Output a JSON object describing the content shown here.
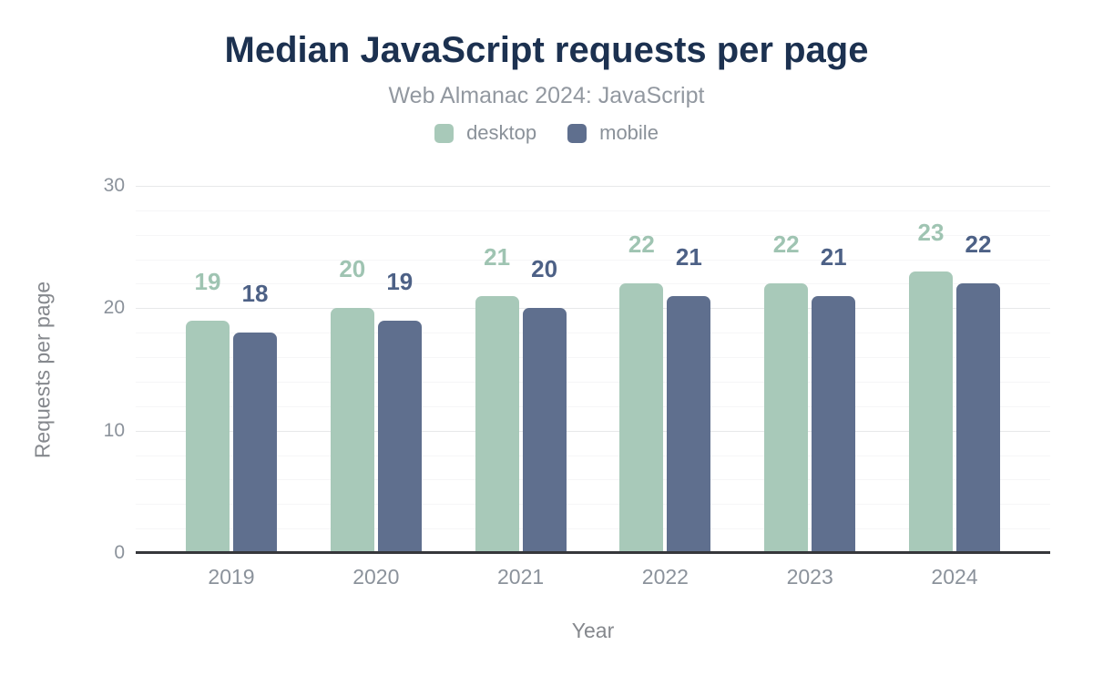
{
  "header": {
    "title": "Median JavaScript requests per page",
    "subtitle": "Web Almanac 2024: JavaScript"
  },
  "colors": {
    "title_text": "#1c3150",
    "subtitle_text": "#9298a0",
    "axis_text": "#8b929b",
    "axis_title_text": "#85888d",
    "baseline": "#36373b",
    "gridline_major": "#e7e8ea",
    "gridline_minor": "#f6f6f7"
  },
  "chart_data": {
    "type": "bar",
    "title": "Median JavaScript requests per page",
    "subtitle": "Web Almanac 2024: JavaScript",
    "categories": [
      "2019",
      "2020",
      "2021",
      "2022",
      "2023",
      "2024"
    ],
    "series": [
      {
        "name": "desktop",
        "color": "#a8c9b9",
        "label_color": "#9fc4b2",
        "values": [
          19,
          20,
          21,
          22,
          22,
          23
        ]
      },
      {
        "name": "mobile",
        "color": "#5f6f8e",
        "label_color": "#4d6186",
        "values": [
          18,
          19,
          20,
          21,
          21,
          22
        ]
      }
    ],
    "xlabel": "Year",
    "ylabel": "Requests per page",
    "ylim": [
      0,
      30
    ],
    "yticks": [
      0,
      10,
      20,
      30
    ],
    "minor_grid_step": 2,
    "major_grid_step": 10,
    "grid": "horizontal",
    "legend_position": "top",
    "value_labels": "above bars, colored per series"
  }
}
